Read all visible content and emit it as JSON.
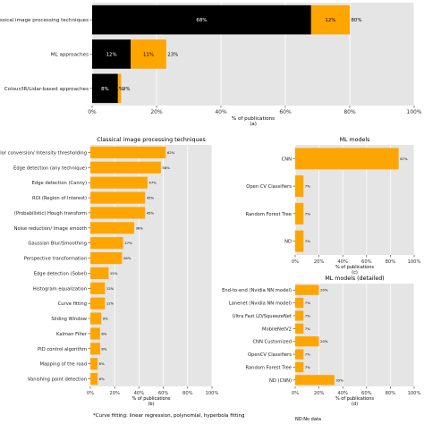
{
  "colors": {
    "primary": "#000000",
    "secondary": "#FFA500",
    "panel_bg": "#E5E5E5",
    "grid": "#FFFFFF"
  },
  "chart_data": [
    {
      "id": "a",
      "type": "bar",
      "orientation": "horizontal",
      "stacked": true,
      "categories": [
        "Classical image processing techniques",
        "ML approaches",
        "Colour/IR/Lidar-based approaches"
      ],
      "series": [
        {
          "color": "#000000",
          "values": [
            68,
            12,
            8
          ],
          "labels": [
            "68%",
            "12%",
            "8%"
          ]
        },
        {
          "color": "#FFA500",
          "values": [
            12,
            11,
            1
          ],
          "labels": [
            "12%",
            "11%",
            "1%"
          ]
        }
      ],
      "total_labels": [
        "80%",
        "23%",
        "9%"
      ],
      "xlabel": "% of publications",
      "panel": "(a)",
      "xlim": [
        0,
        100
      ],
      "xticks": [
        "0%",
        "20%",
        "40%",
        "60%",
        "80%",
        "100%"
      ],
      "grid": true
    },
    {
      "id": "b",
      "type": "bar",
      "orientation": "horizontal",
      "title": "Classical image processing techniques",
      "categories": [
        "Color conversion/ Intensity thresholding",
        "Edge detection (any technique)",
        "Edge detection (Canny)",
        "ROI (Region of Interest)",
        "(Probabilistic) Hough transform",
        "Noise reduction/ Image smooth",
        "Gaussian Blur/Smoothing",
        "Perspective transformation",
        "Edge detection (Sobel)",
        "Histogram equalization",
        "Curve fitting",
        "Sliding Window",
        "Kalman Filter",
        "PID control algorithm",
        "Mapping of the road",
        "Vanishing point detection"
      ],
      "values": [
        62,
        58,
        47,
        45,
        45,
        36,
        27,
        26,
        15,
        12,
        12,
        9,
        8,
        8,
        6,
        6
      ],
      "labels": [
        "62%",
        "58%",
        "47%",
        "45%",
        "45%",
        "36%",
        "27%",
        "26%",
        "15%",
        "12%",
        "12%",
        "9%",
        "8%",
        "8%",
        "6%",
        "6%"
      ],
      "xlabel": "% of publications",
      "panel": "(b)",
      "xlim": [
        0,
        100
      ],
      "xticks": [
        "0%",
        "20%",
        "40%",
        "60%",
        "80%",
        "100%"
      ],
      "grid": true
    },
    {
      "id": "c",
      "type": "bar",
      "orientation": "horizontal",
      "title": "ML models",
      "categories": [
        "CNN",
        "Open CV Classifiers",
        "Random Forest Tree",
        "ND"
      ],
      "values": [
        87,
        7,
        7,
        7
      ],
      "labels": [
        "87%",
        "7%",
        "7%",
        "7%"
      ],
      "xlabel": "% of publications",
      "panel": "(c)",
      "xlim": [
        0,
        100
      ],
      "xticks": [
        "0%",
        "20%",
        "40%",
        "60%",
        "80%",
        "100%"
      ],
      "grid": true
    },
    {
      "id": "d",
      "type": "bar",
      "orientation": "horizontal",
      "title": "ML models (detailed)",
      "categories": [
        "End-to-end (Nvidia NN model)",
        "Lanenet (Nvidia NN model)",
        "Ultra Fast LD/SqueezeNet",
        "MobileNetV2",
        "CNN Customized",
        "OpenCV Classifiers",
        "Random Forest Tree",
        "ND (CNN)"
      ],
      "values": [
        20,
        7,
        7,
        7,
        20,
        7,
        7,
        33
      ],
      "labels": [
        "20%",
        "7%",
        "7%",
        "7%",
        "20%",
        "7%",
        "7%",
        "33%"
      ],
      "xlabel": "% of publications",
      "panel": "(d)",
      "xlim": [
        0,
        100
      ],
      "xticks": [
        "0%",
        "20%",
        "40%",
        "60%",
        "80%",
        "100%"
      ],
      "grid": true
    }
  ],
  "footnote": "*Curve fitting: linear regression, polynomial, hyperbola fitting",
  "footnote2": "ND:No data"
}
